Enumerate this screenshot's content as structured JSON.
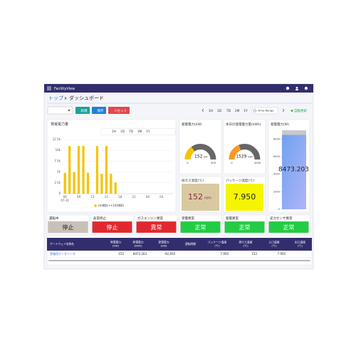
{
  "app": {
    "title": "FacilityView"
  },
  "breadcrumb": [
    "トップ",
    "ダッシュボード"
  ],
  "toolbar": {
    "buttons": [
      {
        "label": "新規",
        "color": "#1aa39a"
      },
      {
        "label": "保存",
        "color": "#1f7fd6"
      },
      {
        "label": "リセット",
        "color": "#e2474c"
      }
    ],
    "ranges": [
      "1H",
      "1D",
      "7D",
      "1M",
      "1Y"
    ],
    "time_range": "Time Range",
    "auto_refresh": "自動更新"
  },
  "chart_controls": {
    "ranges": [
      "1H",
      "1D",
      "7D",
      "1M",
      "1Y"
    ]
  },
  "chart_data": {
    "type": "bar",
    "title": "発電電力量",
    "categories": [
      "06",
      null,
      null,
      "09",
      null,
      null,
      "12",
      null,
      null,
      "15",
      null,
      null,
      "18",
      null,
      null,
      "21",
      null,
      null,
      "00",
      null,
      null,
      "03",
      null,
      null
    ],
    "x_date": "07-31",
    "series": [
      {
        "name": "sm燃料++104燃料",
        "color": "#f5c400",
        "values": [
          4800,
          11000,
          5000,
          11000,
          11000,
          4800,
          0,
          11000,
          4600,
          11000,
          4600,
          2600,
          0,
          0,
          0,
          0,
          0,
          0,
          0,
          0,
          0,
          0,
          0,
          0
        ]
      }
    ],
    "ylim": [
      0,
      12500
    ],
    "yticks": [
      0,
      {
        "value": 2500,
        "label": "2.5k"
      },
      {
        "value": 5000,
        "label": "5k"
      },
      {
        "value": 7500,
        "label": "7.5k"
      },
      {
        "value": 10000,
        "label": "10k"
      },
      {
        "value": 12500,
        "label": "12.5k"
      }
    ],
    "grid": true
  },
  "gauges": [
    {
      "title": "発電電力(kW)",
      "value": 152,
      "unit": "kW",
      "min": 0,
      "max": 500,
      "color": "#f5c400"
    },
    {
      "title": "本日の発電電力量(kWh)",
      "value": 1529,
      "unit": "kWh",
      "min": 0,
      "max": 4000,
      "color": "#f59a23"
    }
  ],
  "tank": {
    "title": "発電電力(W)",
    "value": 8473.203,
    "lim": [
      0,
      9000
    ],
    "ticks": [
      0,
      2000,
      4000,
      6000,
      8000
    ]
  },
  "tiles": [
    {
      "title": "排ガス温度(℃)",
      "value": "152",
      "unit": "rem",
      "bg": "#d9c9a0",
      "color": "#8a2a4a"
    },
    {
      "title": "パッケージ温度(℃)",
      "value": "7.950",
      "bg": "#f5f500",
      "color": "#222222"
    }
  ],
  "status": [
    {
      "label": "運転中",
      "state": "停止",
      "bg": "#c9c0b8",
      "color": "#222222"
    },
    {
      "label": "非常停止",
      "state": "停止",
      "bg": "#e0282e",
      "color": "#ffffff"
    },
    {
      "label": "ガスエンジン異常",
      "state": "異常",
      "bg": "#e0282e",
      "color": "#ffffff"
    },
    {
      "label": "受電異常",
      "state": "正常",
      "bg": "#22cc44",
      "color": "#ffffff"
    },
    {
      "label": "発電異常",
      "state": "正常",
      "bg": "#22cc44",
      "color": "#ffffff"
    },
    {
      "label": "逆カセンサ異常",
      "state": "正常",
      "bg": "#22cc44",
      "color": "#ffffff"
    }
  ],
  "table": {
    "headers": [
      "ゲートウェイ名称名",
      "発電電力(kW)",
      "発電電力(kWh)",
      "受電電力(kW)",
      "運転時間",
      "パッケージ温度(℃)",
      "排ガス温度(℃)",
      "入口温度(℃)",
      "出口温度(℃)"
    ],
    "rows": [
      [
        "評価用データソース",
        "152",
        "8473.203",
        "-92,650",
        null,
        "7.950",
        "152",
        "7.950",
        null
      ]
    ]
  }
}
